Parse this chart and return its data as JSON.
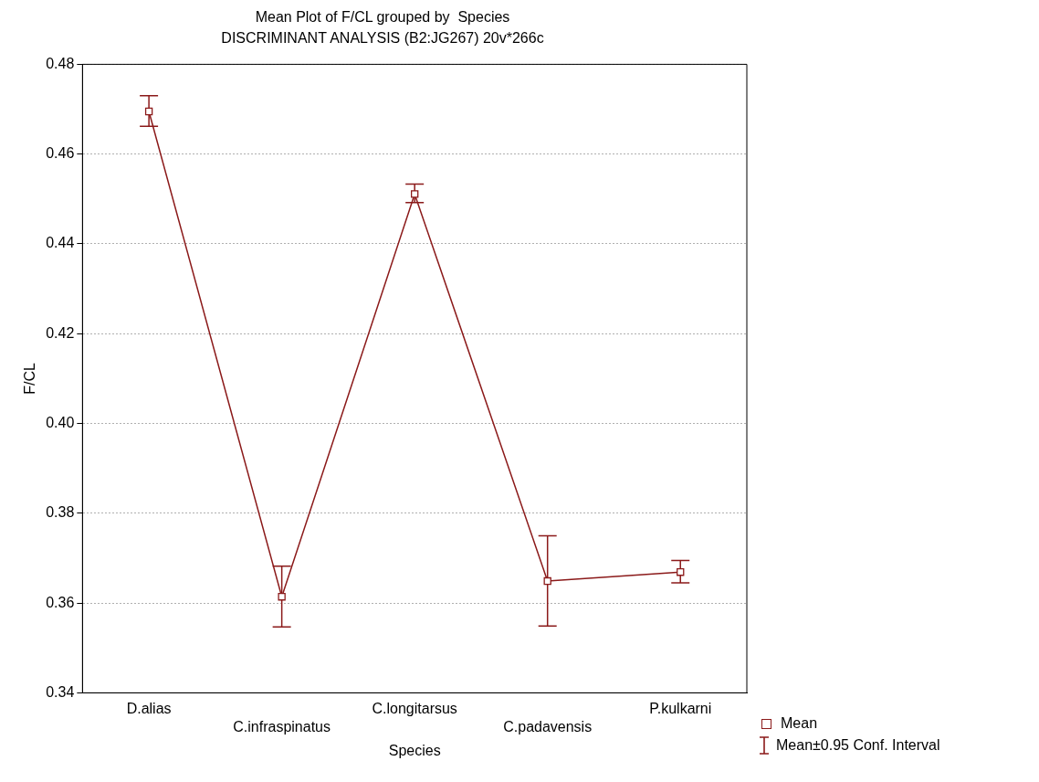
{
  "chart_data": {
    "type": "line",
    "title": "Mean Plot of F/CL grouped by  Species",
    "subtitle": "DISCRIMINANT ANALYSIS (B2:JG267) 20v*266c",
    "xlabel": "Species",
    "ylabel": "F/CL",
    "categories": [
      "D.alias",
      "C.infraspinatus",
      "C.longitarsus",
      "C.padavensis",
      "P.kulkarni"
    ],
    "series": [
      {
        "name": "Mean",
        "color": "#8b1a1a",
        "values": [
          0.4695,
          0.3614,
          0.4511,
          0.3649,
          0.3669
        ],
        "errors": [
          [
            0.4662,
            0.473
          ],
          [
            0.3547,
            0.3682
          ],
          [
            0.4492,
            0.4533
          ],
          [
            0.3549,
            0.375
          ],
          [
            0.3645,
            0.3695
          ]
        ]
      }
    ],
    "annotations": [
      "Mean±0.95 Conf. Interval"
    ],
    "ylim": [
      0.34,
      0.48
    ],
    "yticks": [
      {
        "value": 0.34,
        "label": "0.34"
      },
      {
        "value": 0.36,
        "label": "0.36"
      },
      {
        "value": 0.38,
        "label": "0.38"
      },
      {
        "value": 0.4,
        "label": "0.40"
      },
      {
        "value": 0.42,
        "label": "0.42"
      },
      {
        "value": 0.44,
        "label": "0.44"
      },
      {
        "value": 0.46,
        "label": "0.46"
      },
      {
        "value": 0.48,
        "label": "0.48"
      }
    ],
    "grid": "y",
    "legend": "bottom right",
    "marker": "square",
    "line_style": "solid"
  }
}
